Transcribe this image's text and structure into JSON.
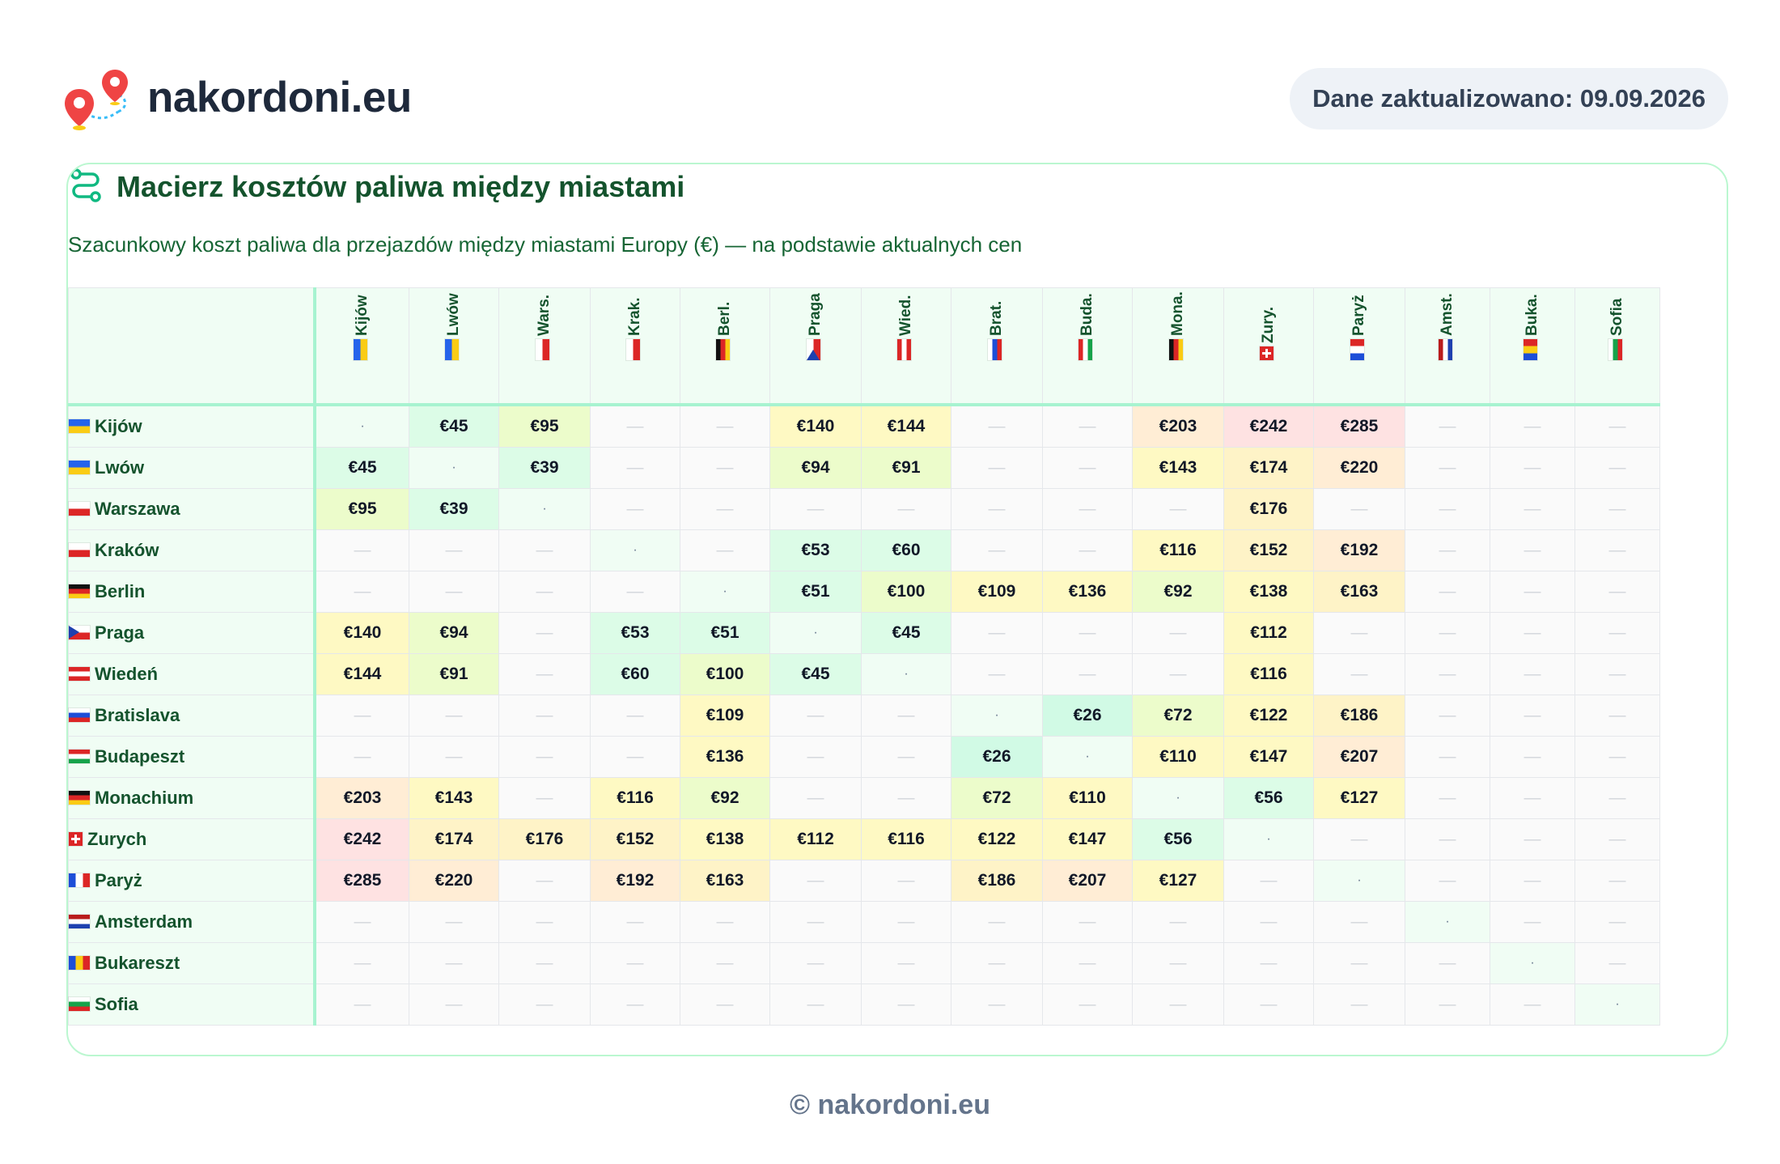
{
  "brand": {
    "name": "nakordoni.eu",
    "icon": "map-pin-route-icon"
  },
  "updated_label": "Dane zaktualizowano: 09.09.2026",
  "card": {
    "title": "Macierz kosztów paliwa między miastami",
    "title_icon": "route-icon",
    "subtitle": "Szacunkowy koszt paliwa dla przejazdów między miastami Europy (€) — na podstawie aktualnych cen"
  },
  "cities": [
    {
      "name": "Kijów",
      "abbr": "Kijów",
      "flag": "ua"
    },
    {
      "name": "Lwów",
      "abbr": "Lwów",
      "flag": "ua"
    },
    {
      "name": "Warszawa",
      "abbr": "Wars.",
      "flag": "pl"
    },
    {
      "name": "Kraków",
      "abbr": "Krak.",
      "flag": "pl"
    },
    {
      "name": "Berlin",
      "abbr": "Berl.",
      "flag": "de"
    },
    {
      "name": "Praga",
      "abbr": "Praga",
      "flag": "cz"
    },
    {
      "name": "Wiedeń",
      "abbr": "Wied.",
      "flag": "at"
    },
    {
      "name": "Bratislava",
      "abbr": "Brat.",
      "flag": "sk"
    },
    {
      "name": "Budapeszt",
      "abbr": "Buda.",
      "flag": "hu"
    },
    {
      "name": "Monachium",
      "abbr": "Mona.",
      "flag": "de"
    },
    {
      "name": "Zurych",
      "abbr": "Zury.",
      "flag": "ch"
    },
    {
      "name": "Paryż",
      "abbr": "Paryż",
      "flag": "fr"
    },
    {
      "name": "Amsterdam",
      "abbr": "Amst.",
      "flag": "nl"
    },
    {
      "name": "Bukareszt",
      "abbr": "Buka.",
      "flag": "ro"
    },
    {
      "name": "Sofia",
      "abbr": "Sofia",
      "flag": "bg"
    }
  ],
  "symbols": {
    "diagonal": "·",
    "missing": "—",
    "currency": "€"
  },
  "matrix": [
    [
      null,
      45,
      95,
      null,
      null,
      140,
      144,
      null,
      null,
      203,
      242,
      285,
      null,
      null,
      null
    ],
    [
      45,
      null,
      39,
      null,
      null,
      94,
      91,
      null,
      null,
      143,
      174,
      220,
      null,
      null,
      null
    ],
    [
      95,
      39,
      null,
      null,
      null,
      null,
      null,
      null,
      null,
      null,
      176,
      null,
      null,
      null,
      null
    ],
    [
      null,
      null,
      null,
      null,
      null,
      53,
      60,
      null,
      null,
      116,
      152,
      192,
      null,
      null,
      null
    ],
    [
      null,
      null,
      null,
      null,
      null,
      51,
      100,
      109,
      136,
      92,
      138,
      163,
      null,
      null,
      null
    ],
    [
      140,
      94,
      null,
      53,
      51,
      null,
      45,
      null,
      null,
      null,
      112,
      null,
      null,
      null,
      null
    ],
    [
      144,
      91,
      null,
      60,
      100,
      45,
      null,
      null,
      null,
      null,
      116,
      null,
      null,
      null,
      null
    ],
    [
      null,
      null,
      null,
      null,
      109,
      null,
      null,
      null,
      26,
      72,
      122,
      186,
      null,
      null,
      null
    ],
    [
      null,
      null,
      null,
      null,
      136,
      null,
      null,
      26,
      null,
      110,
      147,
      207,
      null,
      null,
      null
    ],
    [
      203,
      143,
      null,
      116,
      92,
      null,
      null,
      72,
      110,
      null,
      56,
      127,
      null,
      null,
      null
    ],
    [
      242,
      174,
      176,
      152,
      138,
      112,
      116,
      122,
      147,
      56,
      null,
      null,
      null,
      null,
      null
    ],
    [
      285,
      220,
      null,
      192,
      163,
      null,
      null,
      186,
      207,
      127,
      null,
      null,
      null,
      null,
      null
    ],
    [
      null,
      null,
      null,
      null,
      null,
      null,
      null,
      null,
      null,
      null,
      null,
      null,
      null,
      null,
      null
    ],
    [
      null,
      null,
      null,
      null,
      null,
      null,
      null,
      null,
      null,
      null,
      null,
      null,
      null,
      null,
      null
    ],
    [
      null,
      null,
      null,
      null,
      null,
      null,
      null,
      null,
      null,
      null,
      null,
      null,
      null,
      null,
      null
    ]
  ],
  "colors": {
    "accent": "#14532d",
    "border": "#a7f3d0",
    "scale": [
      "#d1fae5",
      "#dcfce7",
      "#ecfccb",
      "#fef9c3",
      "#fef3c7",
      "#ffedd5",
      "#fee2e2"
    ]
  },
  "footer": "© nakordoni.eu"
}
